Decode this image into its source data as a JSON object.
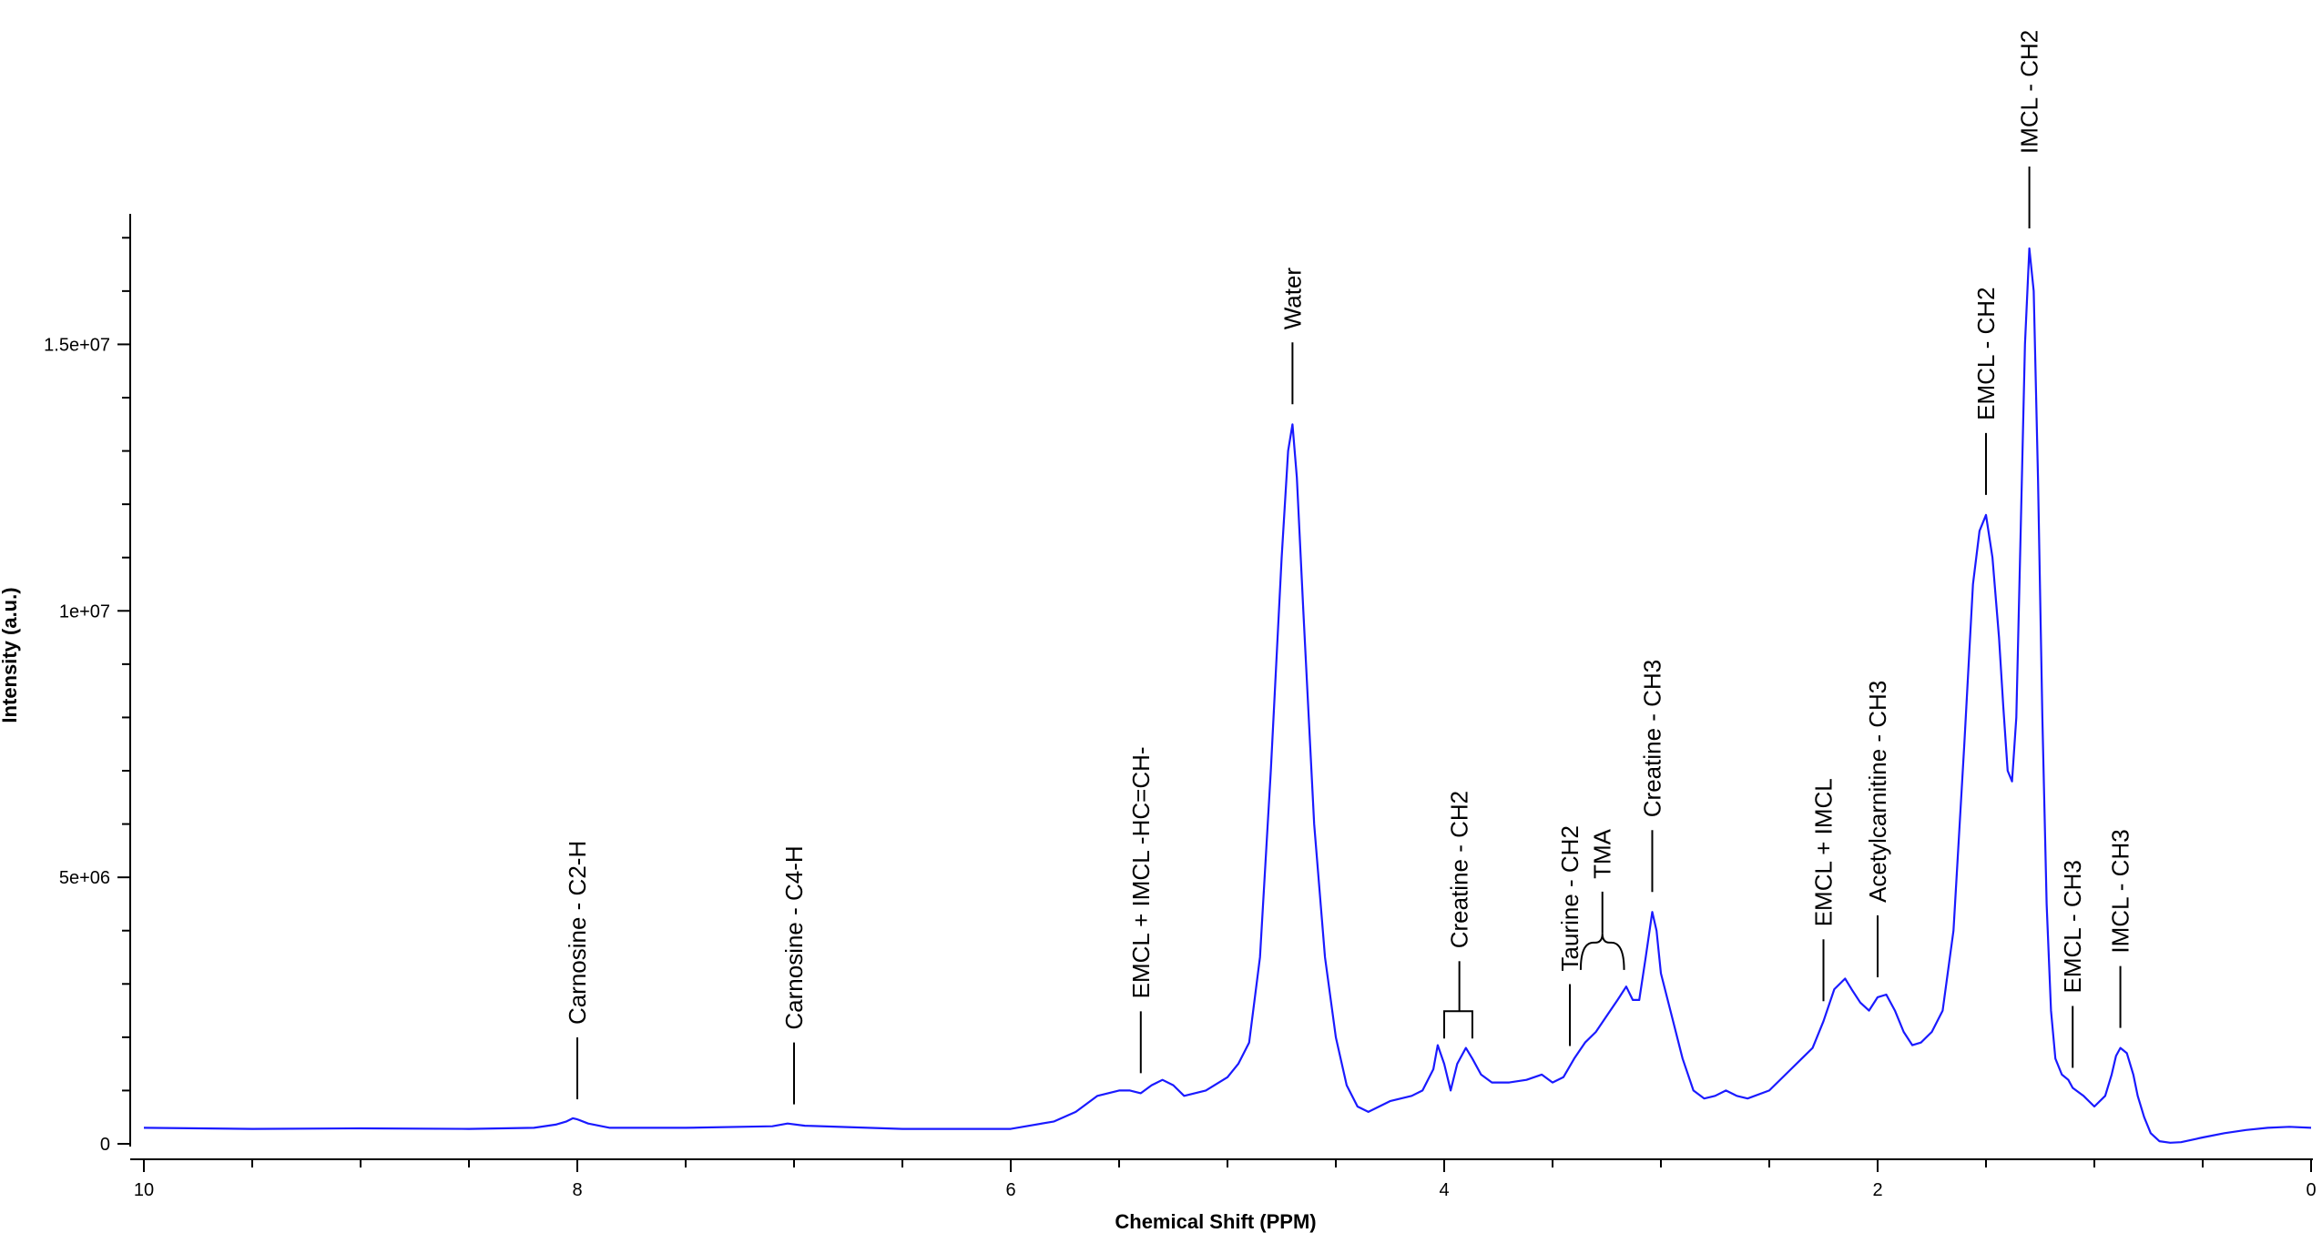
{
  "chart_data": {
    "type": "line",
    "title": "",
    "xlabel": "Chemical Shift (PPM)",
    "ylabel": "Intensity (a.u.)",
    "xlim": [
      10,
      0
    ],
    "ylim": [
      0,
      17500000
    ],
    "x_reversed": true,
    "grid": false,
    "legend": "none",
    "line_color": "#1a1aff",
    "x_ticks": [
      10,
      8,
      6,
      4,
      2,
      0
    ],
    "x_tick_labels": [
      "10",
      "8",
      "6",
      "4",
      "2",
      "0"
    ],
    "y_ticks": [
      0,
      5000000,
      10000000,
      15000000
    ],
    "y_tick_labels": [
      "0",
      "5e+06",
      "1e+07",
      "1.5e+07"
    ],
    "series": [
      {
        "x": [
          10.0,
          9.5,
          9.0,
          8.5,
          8.2,
          8.1,
          8.05,
          8.02,
          8.0,
          7.95,
          7.85,
          7.5,
          7.1,
          7.03,
          6.95,
          6.5,
          6.0,
          5.8,
          5.7,
          5.6,
          5.5,
          5.45,
          5.4,
          5.35,
          5.3,
          5.25,
          5.2,
          5.1,
          5.0,
          4.95,
          4.9,
          4.85,
          4.8,
          4.75,
          4.72,
          4.7,
          4.68,
          4.65,
          4.6,
          4.55,
          4.5,
          4.45,
          4.4,
          4.35,
          4.3,
          4.25,
          4.2,
          4.15,
          4.1,
          4.05,
          4.03,
          4.0,
          3.97,
          3.94,
          3.9,
          3.87,
          3.83,
          3.78,
          3.7,
          3.62,
          3.55,
          3.5,
          3.45,
          3.4,
          3.35,
          3.3,
          3.25,
          3.2,
          3.16,
          3.13,
          3.1,
          3.07,
          3.04,
          3.02,
          3.0,
          2.95,
          2.9,
          2.85,
          2.8,
          2.75,
          2.7,
          2.65,
          2.6,
          2.5,
          2.4,
          2.35,
          2.3,
          2.25,
          2.2,
          2.15,
          2.12,
          2.08,
          2.04,
          2.0,
          1.96,
          1.92,
          1.88,
          1.84,
          1.8,
          1.75,
          1.7,
          1.65,
          1.6,
          1.56,
          1.53,
          1.5,
          1.47,
          1.44,
          1.42,
          1.4,
          1.38,
          1.36,
          1.34,
          1.32,
          1.3,
          1.28,
          1.26,
          1.24,
          1.22,
          1.2,
          1.18,
          1.15,
          1.12,
          1.1,
          1.05,
          1.0,
          0.95,
          0.92,
          0.9,
          0.88,
          0.85,
          0.82,
          0.8,
          0.77,
          0.74,
          0.7,
          0.65,
          0.6,
          0.5,
          0.4,
          0.3,
          0.2,
          0.1,
          0.0
        ],
        "y": [
          300000,
          280000,
          290000,
          280000,
          300000,
          360000,
          420000,
          480000,
          460000,
          380000,
          300000,
          300000,
          330000,
          380000,
          340000,
          280000,
          280000,
          420000,
          600000,
          900000,
          1000000,
          1000000,
          950000,
          1100000,
          1200000,
          1100000,
          900000,
          1000000,
          1250000,
          1500000,
          1900000,
          3500000,
          7000000,
          11000000,
          13000000,
          13500000,
          12500000,
          10000000,
          6000000,
          3500000,
          2000000,
          1100000,
          700000,
          600000,
          700000,
          800000,
          850000,
          900000,
          1000000,
          1400000,
          1850000,
          1500000,
          1000000,
          1500000,
          1800000,
          1600000,
          1300000,
          1150000,
          1150000,
          1200000,
          1300000,
          1150000,
          1250000,
          1600000,
          1900000,
          2100000,
          2400000,
          2700000,
          2950000,
          2700000,
          2700000,
          3500000,
          4350000,
          4000000,
          3200000,
          2400000,
          1600000,
          1000000,
          850000,
          900000,
          1000000,
          900000,
          850000,
          1000000,
          1400000,
          1600000,
          1800000,
          2300000,
          2900000,
          3100000,
          2900000,
          2650000,
          2500000,
          2750000,
          2800000,
          2500000,
          2100000,
          1850000,
          1900000,
          2100000,
          2500000,
          4000000,
          7500000,
          10500000,
          11500000,
          11800000,
          11000000,
          9500000,
          8200000,
          7000000,
          6800000,
          8000000,
          11500000,
          15000000,
          16800000,
          16000000,
          12500000,
          8000000,
          4500000,
          2500000,
          1600000,
          1300000,
          1200000,
          1050000,
          900000,
          700000,
          900000,
          1300000,
          1650000,
          1800000,
          1700000,
          1300000,
          900000,
          500000,
          200000,
          50000,
          20000,
          30000,
          120000,
          200000,
          260000,
          300000,
          320000,
          300000
        ]
      }
    ],
    "annotations": [
      {
        "label": "Carnosine - C2-H",
        "x": 8.0,
        "bracket": "none"
      },
      {
        "label": "Carnosine - C4-H",
        "x": 7.0,
        "bracket": "none"
      },
      {
        "label": "EMCL + IMCL -HC=CH-",
        "x": 5.4,
        "bracket": "none"
      },
      {
        "label": "Water",
        "x": 4.7,
        "bracket": "none"
      },
      {
        "label": "Creatine - CH2",
        "x": 3.93,
        "x_from": 4.0,
        "x_to": 3.87,
        "bracket": "square"
      },
      {
        "label": "Taurine - CH2",
        "x": 3.42,
        "bracket": "none"
      },
      {
        "label": "TMA",
        "x": 3.27,
        "x_from": 3.37,
        "x_to": 3.17,
        "bracket": "curly"
      },
      {
        "label": "Creatine - CH3",
        "x": 3.04,
        "bracket": "none"
      },
      {
        "label": "EMCL + IMCL",
        "x": 2.25,
        "bracket": "none"
      },
      {
        "label": "Acetylcarnitine - CH3",
        "x": 2.0,
        "bracket": "none"
      },
      {
        "label": "EMCL - CH2",
        "x": 1.5,
        "bracket": "none"
      },
      {
        "label": "IMCL - CH2",
        "x": 1.3,
        "bracket": "none"
      },
      {
        "label": "EMCL - CH3",
        "x": 1.1,
        "bracket": "none"
      },
      {
        "label": "IMCL - CH3",
        "x": 0.88,
        "bracket": "none"
      }
    ]
  }
}
